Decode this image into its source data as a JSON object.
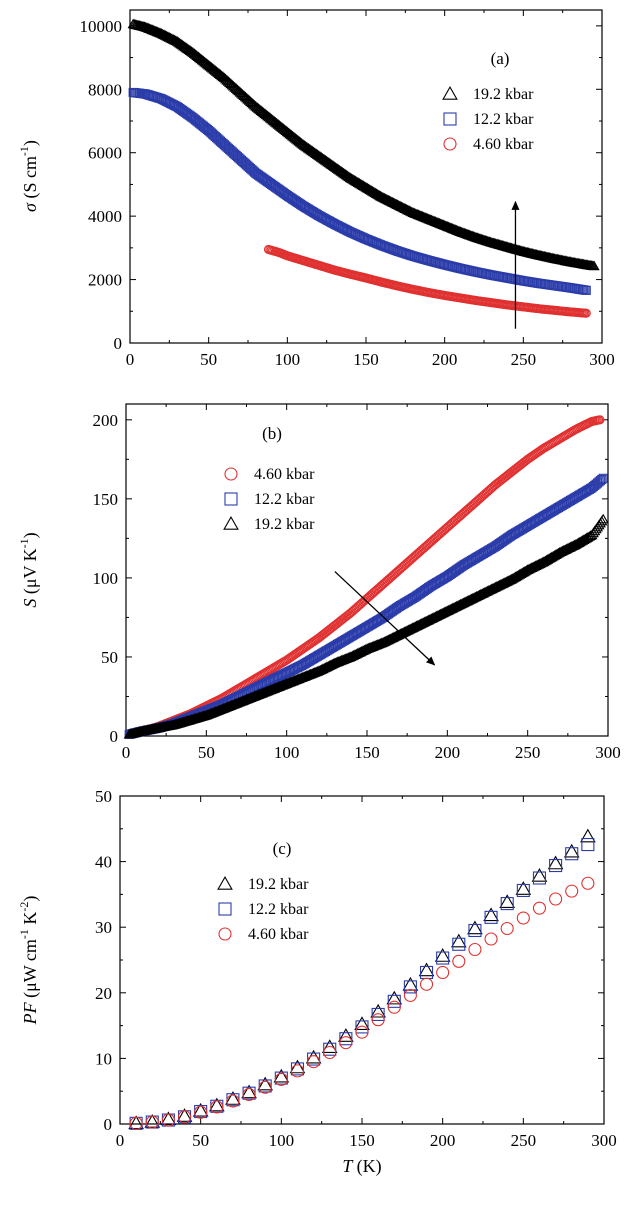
{
  "chart_data": [
    {
      "type": "scatter",
      "panel_label": "(a)",
      "ylabel": {
        "symbol": "σ",
        "unit": "(S cm",
        "exp": "-1",
        "close": ")"
      },
      "xlim": [
        0,
        300
      ],
      "ylim": [
        0,
        10500
      ],
      "xticks": [
        0,
        50,
        100,
        150,
        200,
        250,
        300
      ],
      "yticks": [
        0,
        2000,
        4000,
        6000,
        8000,
        10000
      ],
      "tick_labels_x": [
        "0",
        "50",
        "100",
        "150",
        "200",
        "250",
        "300"
      ],
      "tick_labels_y": [
        "0",
        "2000",
        "4000",
        "6000",
        "8000",
        "10000"
      ],
      "legend_position": "top-right",
      "arrow": {
        "from": [
          245,
          450
        ],
        "to": [
          245,
          4450
        ],
        "direction": "up"
      },
      "series": [
        {
          "name": "19.2 kbar",
          "marker": "triangle",
          "color": "#000000",
          "dense": true,
          "x": [
            2,
            10,
            20,
            30,
            40,
            50,
            60,
            70,
            80,
            90,
            100,
            110,
            120,
            130,
            140,
            150,
            160,
            170,
            180,
            190,
            200,
            210,
            220,
            230,
            240,
            250,
            260,
            270,
            280,
            290,
            295
          ],
          "y": [
            10050,
            9950,
            9750,
            9500,
            9150,
            8750,
            8350,
            7900,
            7450,
            7050,
            6650,
            6250,
            5900,
            5550,
            5200,
            4900,
            4600,
            4350,
            4100,
            3900,
            3700,
            3500,
            3320,
            3160,
            3020,
            2880,
            2760,
            2650,
            2550,
            2460,
            2420
          ]
        },
        {
          "name": "12.2 kbar",
          "marker": "square",
          "color": "#2b3caa",
          "dense": true,
          "x": [
            2,
            10,
            20,
            30,
            40,
            50,
            60,
            70,
            80,
            90,
            100,
            110,
            120,
            130,
            140,
            150,
            160,
            170,
            180,
            190,
            200,
            210,
            220,
            230,
            240,
            250,
            260,
            270,
            280,
            290
          ],
          "y": [
            7900,
            7850,
            7700,
            7450,
            7100,
            6700,
            6250,
            5800,
            5350,
            5000,
            4650,
            4320,
            4020,
            3750,
            3500,
            3280,
            3080,
            2900,
            2740,
            2600,
            2470,
            2350,
            2240,
            2140,
            2050,
            1960,
            1880,
            1810,
            1740,
            1660
          ]
        },
        {
          "name": "4.60 kbar",
          "marker": "circle",
          "color": "#e03030",
          "dense": true,
          "x": [
            88,
            95,
            100,
            110,
            120,
            130,
            140,
            150,
            160,
            170,
            180,
            190,
            200,
            210,
            220,
            230,
            240,
            250,
            260,
            270,
            280,
            290
          ],
          "y": [
            2950,
            2850,
            2750,
            2600,
            2450,
            2300,
            2170,
            2050,
            1920,
            1800,
            1690,
            1590,
            1500,
            1420,
            1340,
            1270,
            1200,
            1140,
            1080,
            1030,
            980,
            940
          ]
        }
      ]
    },
    {
      "type": "scatter",
      "panel_label": "(b)",
      "ylabel": {
        "symbol": "S",
        "unit": "(μV K",
        "exp": "-1",
        "close": ")"
      },
      "xlim": [
        0,
        300
      ],
      "ylim": [
        0,
        210
      ],
      "xticks": [
        0,
        50,
        100,
        150,
        200,
        250,
        300
      ],
      "yticks": [
        0,
        50,
        100,
        150,
        200
      ],
      "tick_labels_x": [
        "0",
        "50",
        "100",
        "150",
        "200",
        "250",
        "300"
      ],
      "tick_labels_y": [
        "0",
        "50",
        "100",
        "150",
        "200"
      ],
      "legend_position": "upper-left",
      "arrow": {
        "from": [
          130,
          104
        ],
        "to": [
          192,
          45
        ],
        "direction": "down-right"
      },
      "series": [
        {
          "name": "4.60 kbar",
          "marker": "circle",
          "color": "#e03030",
          "dense": true,
          "x": [
            2,
            10,
            20,
            30,
            40,
            50,
            60,
            70,
            80,
            90,
            100,
            110,
            120,
            130,
            140,
            150,
            160,
            170,
            180,
            190,
            200,
            210,
            220,
            230,
            240,
            250,
            260,
            270,
            280,
            290,
            295
          ],
          "y": [
            1,
            3,
            6,
            10,
            14,
            19,
            24,
            30,
            36,
            42,
            48,
            55,
            62,
            70,
            78,
            87,
            96,
            105,
            114,
            123,
            132,
            141,
            150,
            159,
            167,
            175,
            182,
            188,
            194,
            199,
            200
          ]
        },
        {
          "name": "12.2 kbar",
          "marker": "square",
          "color": "#2b3caa",
          "dense": true,
          "x": [
            2,
            10,
            20,
            30,
            40,
            50,
            60,
            70,
            80,
            90,
            100,
            110,
            120,
            130,
            140,
            150,
            160,
            170,
            180,
            190,
            200,
            210,
            220,
            230,
            240,
            250,
            260,
            270,
            280,
            290,
            297
          ],
          "y": [
            1,
            3,
            5,
            8,
            12,
            16,
            20,
            25,
            30,
            35,
            40,
            45,
            51,
            57,
            63,
            69,
            75,
            82,
            88,
            95,
            101,
            108,
            114,
            120,
            127,
            133,
            139,
            145,
            151,
            157,
            163
          ]
        },
        {
          "name": "19.2 kbar",
          "marker": "triangle",
          "color": "#000000",
          "dense": true,
          "x": [
            2,
            10,
            20,
            30,
            40,
            50,
            60,
            70,
            80,
            90,
            100,
            110,
            120,
            130,
            140,
            150,
            160,
            170,
            180,
            190,
            200,
            210,
            220,
            230,
            240,
            250,
            260,
            270,
            280,
            290,
            297
          ],
          "y": [
            1,
            3,
            5,
            7,
            10,
            13,
            17,
            21,
            25,
            29,
            33,
            37,
            41,
            46,
            50,
            55,
            59,
            64,
            69,
            74,
            79,
            84,
            89,
            94,
            99,
            105,
            110,
            116,
            121,
            127,
            137
          ]
        }
      ]
    },
    {
      "type": "scatter",
      "panel_label": "(c)",
      "ylabel": {
        "symbol": "PF",
        "unit": "(μW cm",
        "exp": "-1",
        "mid": " K",
        "exp2": "-2",
        "close": ")"
      },
      "xlabel": {
        "symbol": "T",
        "unit": "(K)"
      },
      "xlim": [
        0,
        300
      ],
      "ylim": [
        0,
        50
      ],
      "xticks": [
        0,
        50,
        100,
        150,
        200,
        250,
        300
      ],
      "yticks": [
        0,
        10,
        20,
        30,
        40,
        50
      ],
      "tick_labels_x": [
        "0",
        "50",
        "100",
        "150",
        "200",
        "250",
        "300"
      ],
      "tick_labels_y": [
        "0",
        "10",
        "20",
        "30",
        "40",
        "50"
      ],
      "legend_position": "upper-left",
      "series": [
        {
          "name": "19.2 kbar",
          "marker": "triangle",
          "color": "#000000",
          "dense": false,
          "x": [
            10,
            20,
            30,
            40,
            50,
            60,
            70,
            80,
            90,
            100,
            110,
            120,
            130,
            140,
            150,
            160,
            170,
            180,
            190,
            200,
            210,
            220,
            230,
            240,
            250,
            260,
            270,
            280,
            290
          ],
          "y": [
            0.1,
            0.3,
            0.7,
            1.2,
            2.0,
            2.8,
            3.8,
            4.8,
            6.0,
            7.2,
            8.6,
            10.1,
            11.7,
            13.4,
            15.2,
            17.1,
            19.1,
            21.2,
            23.4,
            25.6,
            27.8,
            29.8,
            31.8,
            33.8,
            35.8,
            37.8,
            39.7,
            41.5,
            43.8
          ]
        },
        {
          "name": "12.2 kbar",
          "marker": "square",
          "color": "#2b3caa",
          "dense": false,
          "x": [
            10,
            20,
            30,
            40,
            50,
            60,
            70,
            80,
            90,
            100,
            110,
            120,
            130,
            140,
            150,
            160,
            170,
            180,
            190,
            200,
            210,
            220,
            230,
            240,
            250,
            260,
            270,
            280,
            290
          ],
          "y": [
            0.1,
            0.3,
            0.6,
            1.1,
            1.9,
            2.7,
            3.7,
            4.7,
            5.8,
            7.0,
            8.4,
            9.9,
            11.4,
            13.0,
            14.8,
            16.7,
            18.7,
            20.9,
            23.1,
            25.3,
            27.4,
            29.5,
            31.5,
            33.6,
            35.6,
            37.5,
            39.4,
            41.2,
            42.6
          ]
        },
        {
          "name": "4.60 kbar",
          "marker": "circle",
          "color": "#e03030",
          "dense": false,
          "x": [
            10,
            20,
            30,
            40,
            50,
            60,
            70,
            80,
            90,
            100,
            110,
            120,
            130,
            140,
            150,
            160,
            170,
            180,
            190,
            200,
            210,
            220,
            230,
            240,
            250,
            260,
            270,
            280,
            290
          ],
          "y": [
            0.1,
            0.3,
            0.6,
            1.1,
            1.8,
            2.6,
            3.5,
            4.5,
            5.6,
            6.8,
            8.1,
            9.5,
            10.9,
            12.4,
            14.0,
            15.9,
            17.8,
            19.6,
            21.3,
            23.1,
            24.8,
            26.6,
            28.2,
            29.8,
            31.4,
            32.9,
            34.3,
            35.5,
            36.7
          ]
        }
      ]
    }
  ]
}
